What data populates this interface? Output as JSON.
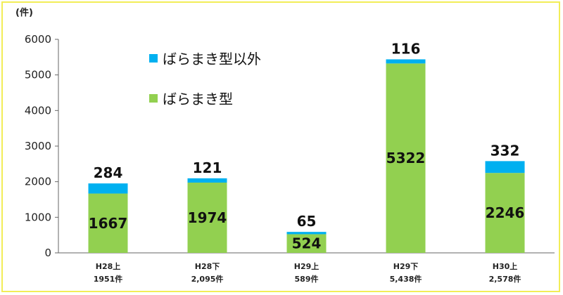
{
  "chart_data": {
    "type": "bar",
    "stacked": true,
    "unit_label": "(件)",
    "y_ticks": [
      "0",
      "1000",
      "2000",
      "3000",
      "4000",
      "5000",
      "6000"
    ],
    "ylim": [
      0,
      6000
    ],
    "categories": [
      "H28上",
      "H28下",
      "H29上",
      "H29下",
      "H30上"
    ],
    "category_sublabels": [
      "1951件",
      "2,095件",
      "589件",
      "5,438件",
      "2,578件"
    ],
    "series": [
      {
        "name": "ばらまき型",
        "color": "#92d050",
        "values": [
          1667,
          1974,
          524,
          5322,
          2246
        ]
      },
      {
        "name": "ばらまき型以外",
        "color": "#00b0f0",
        "values": [
          284,
          121,
          65,
          116,
          332
        ]
      }
    ],
    "legend_position": "top-left inside plot",
    "grid": false
  }
}
